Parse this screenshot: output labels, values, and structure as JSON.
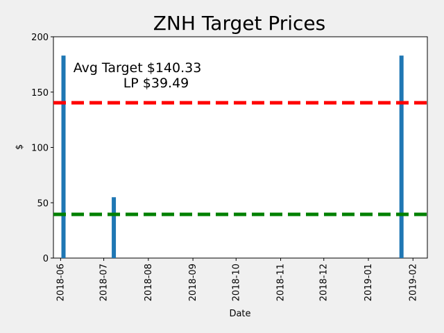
{
  "chart_data": {
    "type": "bar",
    "title": "ZNH Target Prices",
    "xlabel": "Date",
    "ylabel": "$",
    "ylim": [
      0,
      200
    ],
    "yticks": [
      0,
      50,
      100,
      150,
      200
    ],
    "xlim": [
      "2018-05-27",
      "2019-02-11"
    ],
    "xticks": [
      "2018-06",
      "2018-07",
      "2018-08",
      "2018-09",
      "2018-10",
      "2018-11",
      "2018-12",
      "2019-01",
      "2019-02"
    ],
    "bars": [
      {
        "date": "2018-06-03",
        "value": 183
      },
      {
        "date": "2018-07-08",
        "value": 55
      },
      {
        "date": "2019-01-24",
        "value": 183
      }
    ],
    "lines": [
      {
        "value": 140.33,
        "color": "#ff0000",
        "style": "dashed"
      },
      {
        "value": 39.49,
        "color": "#008000",
        "style": "dashed"
      }
    ],
    "annotations": {
      "avg_target": "Avg Target $140.33",
      "lp": "LP $39.49"
    },
    "bar_color": "#1f77b4",
    "grid": false,
    "legend": "none"
  }
}
